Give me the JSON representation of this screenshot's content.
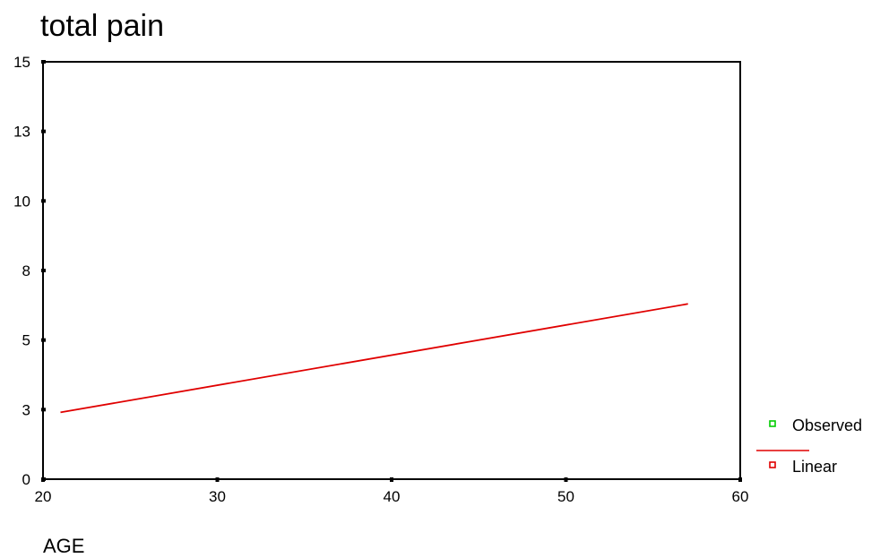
{
  "chart_data": {
    "type": "line",
    "title": "total pain",
    "xlabel": "AGE",
    "ylabel": "",
    "xlim": [
      20,
      60
    ],
    "ylim": [
      0,
      15
    ],
    "x_ticks": [
      20,
      30,
      40,
      50,
      60
    ],
    "y_ticks": [
      0,
      2.5,
      5,
      7.5,
      10,
      12.5,
      15
    ],
    "y_tick_labels": [
      "0",
      "3",
      "5",
      "8",
      "10",
      "13",
      "15"
    ],
    "grid": false,
    "legend": "right",
    "series": [
      {
        "name": "Observed",
        "color": "#00cc00",
        "marker": "square-hollow",
        "x": [],
        "y": []
      },
      {
        "name": "Linear",
        "color": "#e00000",
        "marker": "line",
        "x": [
          21,
          57
        ],
        "y": [
          2.4,
          6.3
        ]
      }
    ],
    "legend_entries": [
      {
        "label": "Observed",
        "color": "#00cc00",
        "icon": "square-hollow-icon"
      },
      {
        "label": "Linear",
        "color": "#e00000",
        "icon": "square-hollow-icon"
      }
    ]
  }
}
